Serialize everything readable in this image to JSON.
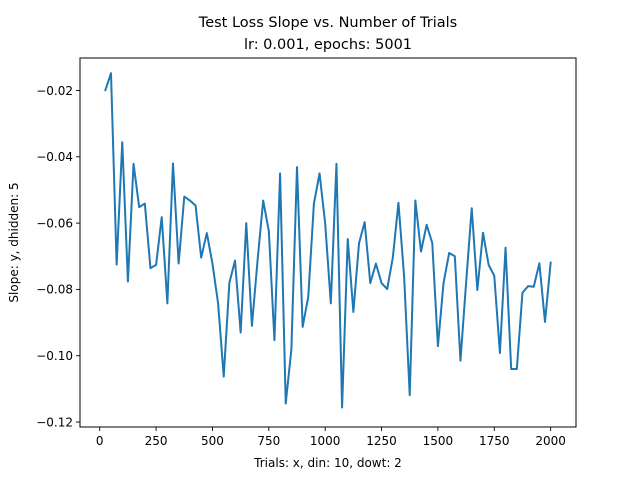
{
  "chart_data": {
    "type": "line",
    "title": "Test Loss Slope vs. Number of Trials",
    "subtitle": "lr: 0.001, epochs: 5001",
    "xlabel": "Trials: x, din: 10, dowt: 2",
    "ylabel": "Slope: y, dhidden: 5",
    "xlim": [
      -87.5,
      2112.5
    ],
    "ylim": [
      -0.1215,
      -0.0102
    ],
    "xticks": [
      0,
      250,
      500,
      750,
      1000,
      1250,
      1500,
      1750,
      2000
    ],
    "xtick_labels": [
      "0",
      "250",
      "500",
      "750",
      "1000",
      "1250",
      "1500",
      "1750",
      "2000"
    ],
    "yticks": [
      -0.12,
      -0.1,
      -0.08,
      -0.06,
      -0.04,
      -0.02
    ],
    "ytick_labels": [
      "−0.12",
      "−0.10",
      "−0.08",
      "−0.06",
      "−0.04",
      "−0.02"
    ],
    "grid": false,
    "series": [
      {
        "color": "#1f77b4",
        "x": [
          25,
          50,
          75,
          100,
          125,
          150,
          175,
          200,
          225,
          250,
          275,
          300,
          325,
          350,
          375,
          400,
          425,
          450,
          475,
          500,
          525,
          550,
          575,
          600,
          625,
          650,
          675,
          700,
          725,
          750,
          775,
          800,
          825,
          850,
          875,
          900,
          925,
          950,
          975,
          1000,
          1025,
          1050,
          1075,
          1100,
          1125,
          1150,
          1175,
          1200,
          1225,
          1250,
          1275,
          1300,
          1325,
          1350,
          1375,
          1400,
          1425,
          1450,
          1475,
          1500,
          1525,
          1550,
          1575,
          1600,
          1625,
          1650,
          1675,
          1700,
          1725,
          1750,
          1775,
          1800,
          1825,
          1850,
          1875,
          1900,
          1925,
          1950,
          1975,
          2000
        ],
        "y": [
          -0.0199,
          -0.0148,
          -0.0725,
          -0.0356,
          -0.0776,
          -0.0421,
          -0.0552,
          -0.0541,
          -0.0736,
          -0.0726,
          -0.0582,
          -0.0842,
          -0.042,
          -0.0722,
          -0.052,
          -0.0532,
          -0.0547,
          -0.0704,
          -0.063,
          -0.0722,
          -0.0842,
          -0.1063,
          -0.078,
          -0.0713,
          -0.093,
          -0.06,
          -0.091,
          -0.0713,
          -0.0532,
          -0.0624,
          -0.0953,
          -0.045,
          -0.1144,
          -0.0981,
          -0.0431,
          -0.0913,
          -0.0822,
          -0.0541,
          -0.045,
          -0.0601,
          -0.0842,
          -0.0421,
          -0.1156,
          -0.0648,
          -0.0868,
          -0.0661,
          -0.0597,
          -0.0781,
          -0.0722,
          -0.0781,
          -0.0799,
          -0.0704,
          -0.0539,
          -0.076,
          -0.1119,
          -0.0532,
          -0.0686,
          -0.0605,
          -0.066,
          -0.0971,
          -0.078,
          -0.069,
          -0.07,
          -0.1015,
          -0.078,
          -0.0555,
          -0.0802,
          -0.0629,
          -0.0726,
          -0.0759,
          -0.0992,
          -0.0674,
          -0.104,
          -0.104,
          -0.081,
          -0.079,
          -0.0792,
          -0.0721,
          -0.0898,
          -0.0719
        ]
      }
    ]
  }
}
